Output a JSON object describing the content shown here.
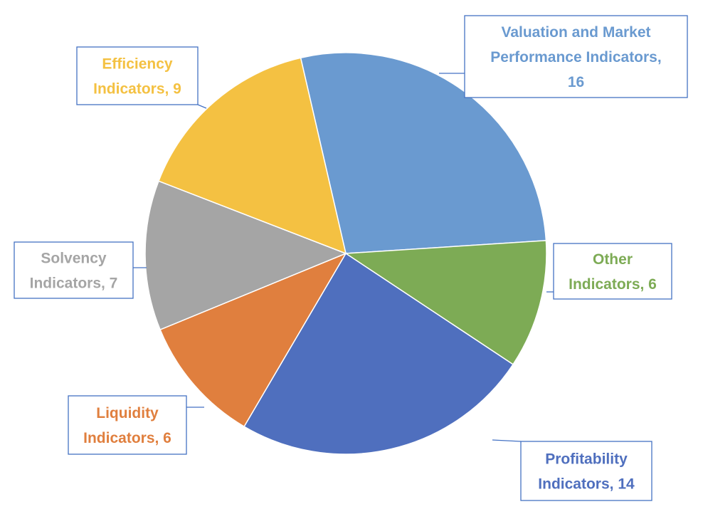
{
  "chart_data": {
    "type": "pie",
    "title": "",
    "slices": [
      {
        "category": "Valuation and Market Performance Indicators",
        "value": 16,
        "color": "#6a9ad0",
        "label_lines": [
          "Valuation and Market",
          "Performance Indicators,",
          "16"
        ]
      },
      {
        "category": "Other Indicators",
        "value": 6,
        "color": "#7dab55",
        "label_lines": [
          "Other",
          "Indicators, 6"
        ]
      },
      {
        "category": "Profitability Indicators",
        "value": 14,
        "color": "#4f6fbe",
        "label_lines": [
          "Profitability",
          "Indicators, 14"
        ]
      },
      {
        "category": "Liquidity Indicators",
        "value": 6,
        "color": "#e07f3e",
        "label_lines": [
          "Liquidity",
          "Indicators, 6"
        ]
      },
      {
        "category": "Solvency Indicators",
        "value": 7,
        "color": "#a5a5a5",
        "label_lines": [
          "Solvency",
          "Indicators, 7"
        ]
      },
      {
        "category": "Efficiency Indicators",
        "value": 9,
        "color": "#f4c142",
        "label_lines": [
          "Efficiency",
          "Indicators, 9"
        ]
      }
    ],
    "start_angle_deg": -13,
    "legend": "none",
    "data_labels": "callouts-with-category-and-value"
  }
}
